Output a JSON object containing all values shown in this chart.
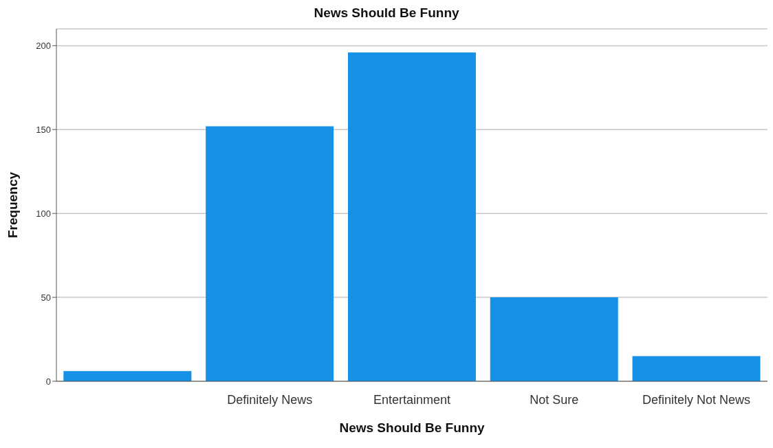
{
  "chart_data": {
    "type": "bar",
    "title": "News Should Be Funny",
    "xlabel": "News Should Be Funny",
    "ylabel": "Frequency",
    "categories": [
      null,
      "Definitely News",
      "Entertainment",
      "Not Sure",
      "Definitely Not News"
    ],
    "values": [
      6,
      152,
      196,
      50,
      15
    ],
    "color": "#1591e8",
    "ylim": [
      0,
      210
    ],
    "yticks": [
      0,
      50,
      100,
      150,
      200
    ],
    "grid": "y"
  }
}
